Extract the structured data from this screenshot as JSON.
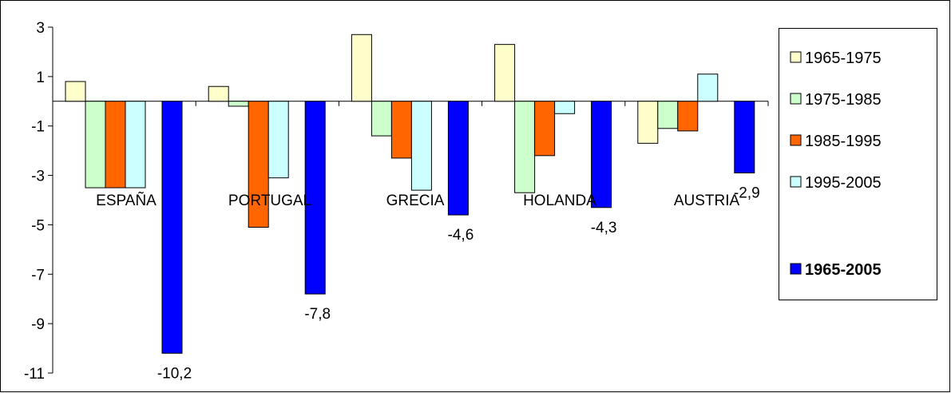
{
  "chart_data": {
    "type": "bar",
    "categories": [
      "ESPAÑA",
      "PORTUGAL",
      "GRECIA",
      "HOLANDA",
      "AUSTRIA"
    ],
    "series": [
      {
        "name": "1965-1975",
        "color": "#FFFFCC",
        "values": [
          0.8,
          0.6,
          2.7,
          2.3,
          -1.7
        ]
      },
      {
        "name": "1975-1985",
        "color": "#CCFFCC",
        "values": [
          -3.5,
          -0.2,
          -1.4,
          -3.7,
          -1.1
        ]
      },
      {
        "name": "1985-1995",
        "color": "#FF6600",
        "values": [
          -3.5,
          -5.1,
          -2.3,
          -2.2,
          -1.2
        ]
      },
      {
        "name": "1995-2005",
        "color": "#CCFFFF",
        "values": [
          -3.5,
          -3.1,
          -3.6,
          -0.5,
          1.1
        ]
      },
      {
        "name": "1965-2005",
        "color": "#0000FF",
        "values": [
          -10.2,
          -7.8,
          -4.6,
          -4.3,
          -2.9
        ],
        "bold_legend": true
      }
    ],
    "data_labels": {
      "series": "1965-2005",
      "texts": [
        "-10,2",
        "-7,8",
        "-4,6",
        "-4,3",
        "-2,9"
      ]
    },
    "y_ticks": [
      3,
      1,
      -1,
      -3,
      -5,
      -7,
      -9,
      -11
    ],
    "ylim": [
      -11,
      3
    ],
    "grid": false,
    "legend_position": "right"
  }
}
